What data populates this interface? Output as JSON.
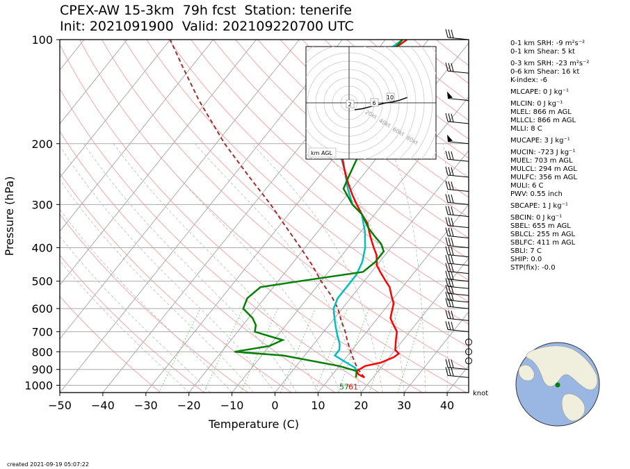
{
  "title": {
    "line1": "CPEX-AW 15-3km  79h fcst  Station: tenerife",
    "line2": "Init: 2021091900  Valid: 2021092207​00 UTC"
  },
  "chart_data": {
    "type": "line",
    "subtype": "skew-T log-p sounding",
    "xlabel": "Temperature (C)",
    "ylabel": "Pressure (hPa)",
    "xlim": [
      -50,
      45
    ],
    "ylim": [
      1050,
      100
    ],
    "y_scale": "log",
    "x_ticks": [
      -50,
      -40,
      -30,
      -20,
      -10,
      0,
      10,
      20,
      30,
      40
    ],
    "y_ticks": [
      100,
      200,
      300,
      400,
      500,
      600,
      700,
      800,
      900,
      1000
    ],
    "grid": true,
    "series": [
      {
        "role": "temperature",
        "color": "#ff0000",
        "points": [
          [
            18,
            950
          ],
          [
            16,
            930
          ],
          [
            15,
            910
          ],
          [
            16,
            880
          ],
          [
            19,
            860
          ],
          [
            21,
            830
          ],
          [
            21.5,
            810
          ],
          [
            20,
            790
          ],
          [
            19,
            760
          ],
          [
            18,
            730
          ],
          [
            17,
            700
          ],
          [
            15,
            670
          ],
          [
            13,
            640
          ],
          [
            12,
            610
          ],
          [
            11,
            580
          ],
          [
            9,
            550
          ],
          [
            7,
            520
          ],
          [
            5,
            500
          ],
          [
            2,
            470
          ],
          [
            0,
            450
          ],
          [
            -2,
            420
          ],
          [
            -4,
            400
          ],
          [
            -6,
            380
          ],
          [
            -8,
            360
          ],
          [
            -10,
            340
          ],
          [
            -13,
            320
          ],
          [
            -16,
            300
          ],
          [
            -19,
            280
          ],
          [
            -22,
            260
          ],
          [
            -25,
            240
          ],
          [
            -28,
            220
          ],
          [
            -31,
            200
          ],
          [
            -35,
            180
          ],
          [
            -38,
            165
          ],
          [
            -40,
            150
          ],
          [
            -39,
            130
          ],
          [
            -38,
            120
          ],
          [
            -36,
            105
          ],
          [
            -35,
            100
          ]
        ]
      },
      {
        "role": "dewpoint",
        "color": "#008000",
        "points": [
          [
            16,
            950
          ],
          [
            15.5,
            930
          ],
          [
            15,
            910
          ],
          [
            10,
            880
          ],
          [
            -5,
            820
          ],
          [
            -17,
            800
          ],
          [
            -10,
            770
          ],
          [
            -8,
            740
          ],
          [
            -12,
            720
          ],
          [
            -16,
            700
          ],
          [
            -17,
            670
          ],
          [
            -19,
            640
          ],
          [
            -23,
            600
          ],
          [
            -24,
            560
          ],
          [
            -23,
            520
          ],
          [
            -15,
            500
          ],
          [
            -2,
            470
          ],
          [
            -1,
            440
          ],
          [
            -1,
            410
          ],
          [
            -3,
            390
          ],
          [
            -6,
            370
          ],
          [
            -9,
            350
          ],
          [
            -13,
            320
          ],
          [
            -17,
            300
          ],
          [
            -22,
            270
          ],
          [
            -23,
            250
          ],
          [
            -24,
            230
          ],
          [
            -25,
            210
          ],
          [
            -26,
            200
          ],
          [
            -30,
            180
          ],
          [
            -33,
            160
          ],
          [
            -36,
            140
          ],
          [
            -37,
            120
          ],
          [
            -36,
            100
          ]
        ]
      },
      {
        "role": "virtual-temperature",
        "color": "#00bfbf",
        "points": [
          [
            16,
            930
          ],
          [
            14,
            890
          ],
          [
            10,
            850
          ],
          [
            7,
            820
          ],
          [
            7,
            790
          ],
          [
            6,
            760
          ],
          [
            4,
            720
          ],
          [
            2,
            680
          ],
          [
            0,
            640
          ],
          [
            -2,
            600
          ],
          [
            -3,
            560
          ],
          [
            -3,
            520
          ],
          [
            -3,
            480
          ],
          [
            -4,
            440
          ],
          [
            -6,
            400
          ],
          [
            -9,
            360
          ],
          [
            -13,
            320
          ],
          [
            -17,
            300
          ],
          [
            -21,
            270
          ],
          [
            -25,
            240
          ],
          [
            -30,
            210
          ],
          [
            -34,
            190
          ],
          [
            -38,
            170
          ],
          [
            -40,
            155
          ],
          [
            -41,
            140
          ],
          [
            -41,
            125
          ],
          [
            -39,
            115
          ],
          [
            -37,
            105
          ],
          [
            -36,
            100
          ]
        ]
      },
      {
        "role": "parcel",
        "color": "#a52a2a",
        "style": "dashed",
        "points": [
          [
            18,
            950
          ],
          [
            15,
            900
          ],
          [
            13,
            860
          ],
          [
            11,
            820
          ],
          [
            9,
            780
          ],
          [
            7,
            740
          ],
          [
            5,
            700
          ],
          [
            2,
            650
          ],
          [
            -1,
            600
          ],
          [
            -5,
            550
          ],
          [
            -10,
            500
          ],
          [
            -15,
            450
          ],
          [
            -21,
            400
          ],
          [
            -28,
            350
          ],
          [
            -36,
            300
          ],
          [
            -46,
            250
          ],
          [
            -58,
            200
          ],
          [
            -72,
            150
          ],
          [
            -82,
            120
          ],
          [
            -90,
            100
          ]
        ]
      }
    ],
    "surface_labels": {
      "dewpoint": "57",
      "temperature": "61"
    },
    "wind_barbs": [
      100,
      125,
      150,
      175,
      200,
      225,
      250,
      275,
      300,
      325,
      350,
      375,
      400,
      425,
      450,
      475,
      500,
      525,
      550,
      575,
      600,
      650,
      700,
      750,
      800,
      850,
      900,
      950
    ],
    "wind_units": "knot",
    "hodograph": {
      "ring_labels": [
        "20kt",
        "40kt",
        "60kt",
        "80kt"
      ],
      "height_labels": [
        "2",
        "6",
        "10"
      ],
      "legend": "km AGL",
      "points": [
        [
          0,
          0
        ],
        [
          3,
          1
        ],
        [
          6,
          3
        ],
        [
          9,
          5
        ],
        [
          12,
          7
        ],
        [
          15,
          8
        ],
        [
          18,
          10
        ],
        [
          21,
          13
        ]
      ]
    }
  },
  "stats": [
    "0-1 km SRH: -9 m²s⁻²",
    "0-1 km Shear: 5 kt",
    "0-3 km SRH: -23 m²s⁻²",
    "0-6 km Shear: 16 kt",
    "K-index: -6",
    "MLCAPE: 0 J kg⁻¹",
    "MLCIN: 0 J kg⁻¹",
    "MLEL: 866 m AGL",
    "MLLCL: 866 m AGL",
    "MLLI: 8 C",
    "MUCAPE: 3 J kg⁻¹",
    "MUCIN: -723 J kg⁻¹",
    "MUEL: 703 m AGL",
    "MULCL: 294 m AGL",
    "MULFC: 356 m AGL",
    "MULI: 6 C",
    "PWV: 0.55 inch",
    "SBCAPE: 1 J kg⁻¹",
    "SBCIN: 0 J kg⁻¹",
    "SBEL: 655 m AGL",
    "SBLCL: 255 m AGL",
    "SBLFC: 411 m AGL",
    "SBLI: 7 C",
    "SHIP: 0.0",
    "STP(fix): -0.0"
  ],
  "footer": {
    "created": "created 2021-09-19 05:07:22"
  }
}
